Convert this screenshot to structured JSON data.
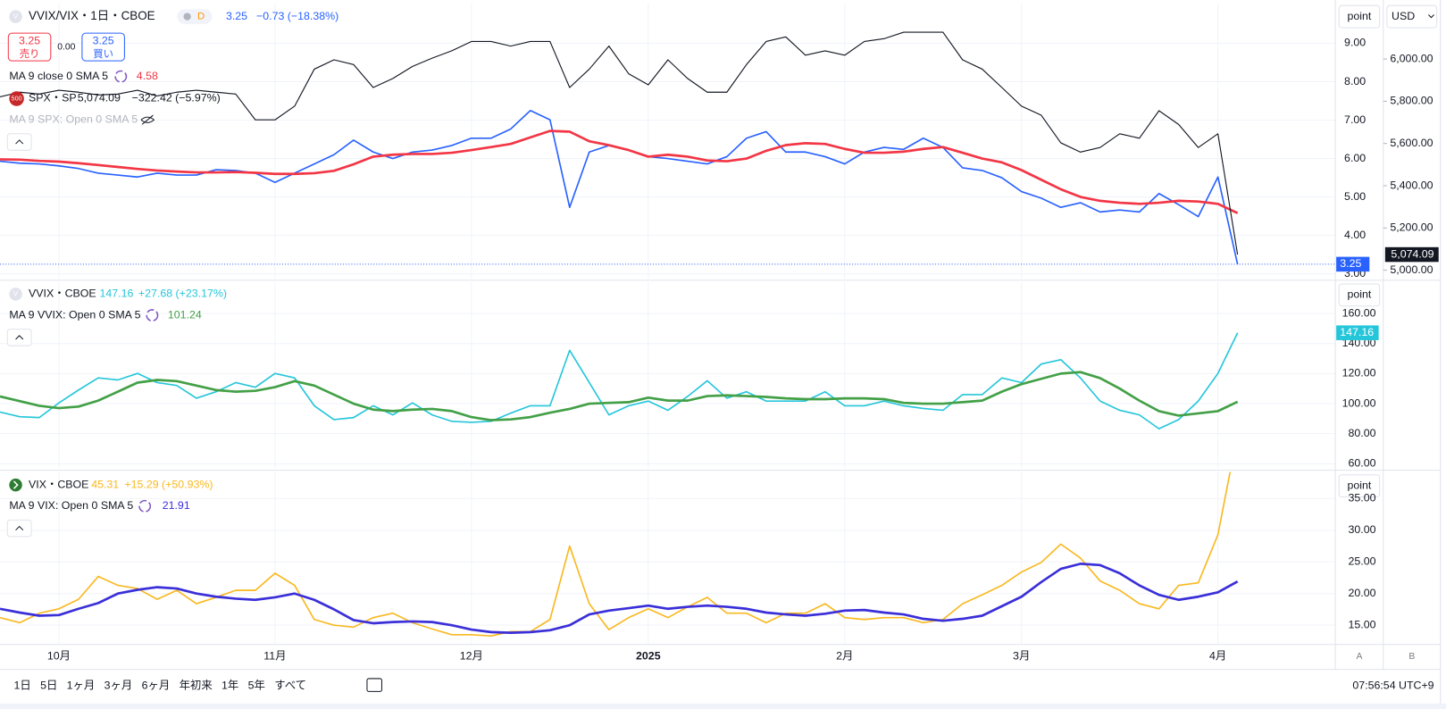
{
  "header": {
    "sell": "売り",
    "buy": "買い",
    "spread": "0.00"
  },
  "toolbar": {
    "ranges": [
      "1日",
      "5日",
      "1ヶ月",
      "3ヶ月",
      "6ヶ月",
      "年初来",
      "1年",
      "5年",
      "すべて"
    ],
    "time": "07:56:54 UTC+9"
  },
  "scale_buttons": {
    "a": "A",
    "b": "B"
  },
  "chart_data": [
    {
      "type": "line",
      "unit": "point",
      "currency": "USD",
      "badge": "D",
      "grid": true,
      "categories": [
        null,
        null,
        null,
        "10月",
        null,
        null,
        null,
        null,
        null,
        null,
        null,
        null,
        null,
        null,
        "11月",
        null,
        null,
        null,
        null,
        null,
        null,
        null,
        null,
        null,
        "12月",
        null,
        null,
        null,
        null,
        null,
        null,
        null,
        null,
        "2025",
        null,
        null,
        null,
        null,
        null,
        null,
        null,
        null,
        null,
        "2月",
        null,
        null,
        null,
        null,
        null,
        null,
        null,
        null,
        "3月",
        null,
        null,
        null,
        null,
        null,
        null,
        null,
        null,
        null,
        "4月",
        null
      ],
      "ylim": [
        2.88,
        10.03
      ],
      "yticks": [
        {
          "value": 3,
          "label": "3.00"
        },
        {
          "value": 4,
          "label": "4.00"
        },
        {
          "value": 5,
          "label": "5.00"
        },
        {
          "value": 6,
          "label": "6.00"
        },
        {
          "value": 7,
          "label": "7.00"
        },
        {
          "value": 8,
          "label": "8.00"
        },
        {
          "value": 9,
          "label": "9.00"
        }
      ],
      "y2lim": [
        4961,
        6262
      ],
      "y2ticks": [
        {
          "value": 5000,
          "label": "5,000.00"
        },
        {
          "value": 5200,
          "label": "5,200.00"
        },
        {
          "value": 5400,
          "label": "5,400.00"
        },
        {
          "value": 5600,
          "label": "5,600.00"
        },
        {
          "value": 5800,
          "label": "5,800.00"
        },
        {
          "value": 6000,
          "label": "6,000.00"
        }
      ],
      "hidden_indicator": "MA 9 SPX: Open 0 SMA 5",
      "series": [
        {
          "name": "VVIX/VIX・1日・CBOE",
          "icon": "V",
          "change": "−0.73 (−18.38%)",
          "color": "#2962ff",
          "values": [
            5.93,
            5.88,
            5.86,
            5.81,
            5.74,
            5.62,
            5.57,
            5.52,
            5.62,
            5.57,
            5.57,
            5.71,
            5.69,
            5.62,
            5.38,
            5.62,
            5.86,
            6.1,
            6.48,
            6.17,
            6.0,
            6.17,
            6.22,
            6.34,
            6.53,
            6.53,
            6.77,
            7.25,
            7.01,
            4.73,
            6.17,
            6.34,
            6.22,
            6.05,
            6.0,
            5.93,
            5.86,
            6.05,
            6.53,
            6.7,
            6.17,
            6.17,
            6.05,
            5.86,
            6.17,
            6.29,
            6.24,
            6.53,
            6.29,
            5.76,
            5.69,
            5.5,
            5.14,
            4.97,
            4.73,
            4.85,
            4.61,
            4.66,
            4.61,
            5.09,
            4.8,
            4.49,
            5.52,
            3.25
          ]
        },
        {
          "name": "MA 9 close 0 SMA 5",
          "color": "#f23645",
          "values": [
            5.98,
            5.97,
            5.94,
            5.92,
            5.88,
            5.83,
            5.78,
            5.73,
            5.69,
            5.66,
            5.64,
            5.64,
            5.65,
            5.63,
            5.6,
            5.6,
            5.62,
            5.68,
            5.85,
            6.05,
            6.1,
            6.12,
            6.12,
            6.15,
            6.22,
            6.3,
            6.38,
            6.55,
            6.72,
            6.7,
            6.45,
            6.35,
            6.22,
            6.05,
            6.1,
            6.05,
            5.95,
            5.93,
            6.0,
            6.2,
            6.35,
            6.4,
            6.38,
            6.25,
            6.15,
            6.15,
            6.18,
            6.25,
            6.3,
            6.15,
            6.0,
            5.9,
            5.7,
            5.45,
            5.2,
            5.0,
            4.9,
            4.85,
            4.82,
            4.85,
            4.9,
            4.88,
            4.82,
            4.58
          ]
        },
        {
          "name": "SPX・SP",
          "icon": "500",
          "axis": "y2",
          "color": "#131722",
          "last_label": "5,074.09",
          "change": "−322.42 (−5.97%)",
          "values": [
            5821,
            5843,
            5834,
            5852,
            5843,
            5830,
            5834,
            5852,
            5825,
            5843,
            5852,
            5843,
            5834,
            5712,
            5712,
            5777,
            5952,
            5996,
            5974,
            5865,
            5908,
            5965,
            6004,
            6039,
            6083,
            6083,
            6061,
            6083,
            6083,
            5865,
            5952,
            6061,
            5930,
            5878,
            5996,
            5908,
            5843,
            5843,
            5974,
            6083,
            6105,
            6018,
            6039,
            6018,
            6083,
            6096,
            6127,
            6127,
            6127,
            5996,
            5952,
            5865,
            5777,
            5734,
            5603,
            5559,
            5581,
            5646,
            5625,
            5755,
            5690,
            5581,
            5646,
            5074.09
          ]
        }
      ]
    },
    {
      "type": "line",
      "unit": "point",
      "grid": true,
      "ylim": [
        56.9,
        180.9
      ],
      "yticks": [
        {
          "value": 60,
          "label": "60.00"
        },
        {
          "value": 80,
          "label": "80.00"
        },
        {
          "value": 100,
          "label": "100.00"
        },
        {
          "value": 120,
          "label": "120.00"
        },
        {
          "value": 140,
          "label": "140.00"
        },
        {
          "value": 160,
          "label": "160.00"
        }
      ],
      "series": [
        {
          "name": "VVIX・CBOE",
          "icon": "V",
          "change": "+27.68 (+23.17%)",
          "color": "#26c6da",
          "values": [
            94.4,
            91.3,
            90.7,
            100.5,
            109.1,
            117.1,
            115.8,
            120.1,
            114.0,
            112.1,
            103.6,
            107.9,
            114.0,
            110.9,
            120.1,
            117.1,
            98.6,
            89.4,
            90.7,
            98.6,
            92.5,
            100.5,
            92.5,
            88.2,
            87.6,
            88.2,
            93.7,
            98.6,
            98.6,
            135.5,
            114.0,
            92.5,
            98.6,
            101.7,
            95.6,
            104.8,
            115.2,
            103.6,
            107.9,
            101.7,
            101.7,
            101.7,
            107.9,
            98.6,
            98.6,
            101.7,
            98.6,
            96.8,
            95.6,
            106.0,
            106.0,
            117.1,
            114.0,
            126.3,
            129.3,
            117.1,
            101.7,
            95.6,
            92.5,
            83.3,
            89.4,
            101.7,
            120.1,
            147.16
          ]
        },
        {
          "name": "MA 9 VVIX: Open 0 SMA 5",
          "color": "#43a047",
          "values": [
            104.8,
            101.7,
            98.6,
            97.0,
            98.0,
            102.0,
            108.0,
            114.0,
            115.8,
            115.0,
            112.0,
            109.0,
            108.0,
            108.5,
            111.0,
            115.0,
            112.0,
            106.0,
            100.0,
            96.0,
            95.0,
            96.0,
            96.5,
            95.0,
            91.0,
            89.0,
            89.5,
            91.0,
            94.0,
            96.5,
            100.0,
            100.5,
            101.0,
            104.0,
            102.0,
            102.0,
            105.0,
            105.5,
            105.0,
            104.5,
            103.5,
            103.0,
            103.0,
            103.5,
            103.5,
            103.0,
            100.5,
            100.0,
            100.0,
            101.0,
            102.0,
            108.0,
            113.0,
            116.5,
            120.0,
            121.0,
            117.0,
            110.0,
            102.0,
            95.0,
            92.0,
            93.5,
            95.0,
            101.24
          ]
        }
      ]
    },
    {
      "type": "line",
      "unit": "point",
      "grid": true,
      "ylim": [
        12.1,
        39.2
      ],
      "yticks": [
        {
          "value": 15,
          "label": "15.00"
        },
        {
          "value": 20,
          "label": "20.00"
        },
        {
          "value": 25,
          "label": "25.00"
        },
        {
          "value": 30,
          "label": "30.00"
        },
        {
          "value": 35,
          "label": "35.00"
        }
      ],
      "series": [
        {
          "name": "VIX・CBOE",
          "change": "+15.29 (+50.93%)",
          "color": "#f9b820",
          "values": [
            16.2,
            15.4,
            16.9,
            17.6,
            19.1,
            22.7,
            21.3,
            20.8,
            19.1,
            20.5,
            18.4,
            19.4,
            20.5,
            20.5,
            23.2,
            21.3,
            15.9,
            15.0,
            14.7,
            16.2,
            16.9,
            15.4,
            14.4,
            13.5,
            13.5,
            13.3,
            14.0,
            14.0,
            15.9,
            27.5,
            18.4,
            14.3,
            16.2,
            17.6,
            16.2,
            17.9,
            19.4,
            16.9,
            16.9,
            15.4,
            16.9,
            16.9,
            18.4,
            16.2,
            15.9,
            16.2,
            16.2,
            15.4,
            15.9,
            18.4,
            19.8,
            21.3,
            23.4,
            24.9,
            27.8,
            25.6,
            22.0,
            20.5,
            18.4,
            17.6,
            21.3,
            21.7,
            29.3,
            45.31
          ]
        },
        {
          "name": "MA 9 VIX: Open 0 SMA 5",
          "color": "#3a2fd8",
          "values": [
            17.6,
            17.0,
            16.5,
            16.6,
            17.6,
            18.5,
            20.0,
            20.6,
            21.0,
            20.8,
            20.0,
            19.5,
            19.2,
            19.0,
            19.4,
            20.0,
            19.0,
            17.5,
            15.8,
            15.3,
            15.5,
            15.6,
            15.5,
            15.0,
            14.3,
            13.9,
            13.8,
            13.9,
            14.2,
            15.0,
            16.7,
            17.3,
            17.7,
            18.1,
            17.6,
            17.9,
            18.1,
            17.9,
            17.6,
            17.0,
            16.7,
            16.5,
            16.8,
            17.3,
            17.4,
            17.0,
            16.7,
            16.0,
            15.7,
            16.0,
            16.5,
            18.0,
            19.5,
            21.8,
            23.9,
            24.7,
            24.5,
            23.2,
            21.3,
            19.8,
            19.0,
            19.5,
            20.2,
            21.91
          ]
        }
      ]
    }
  ]
}
